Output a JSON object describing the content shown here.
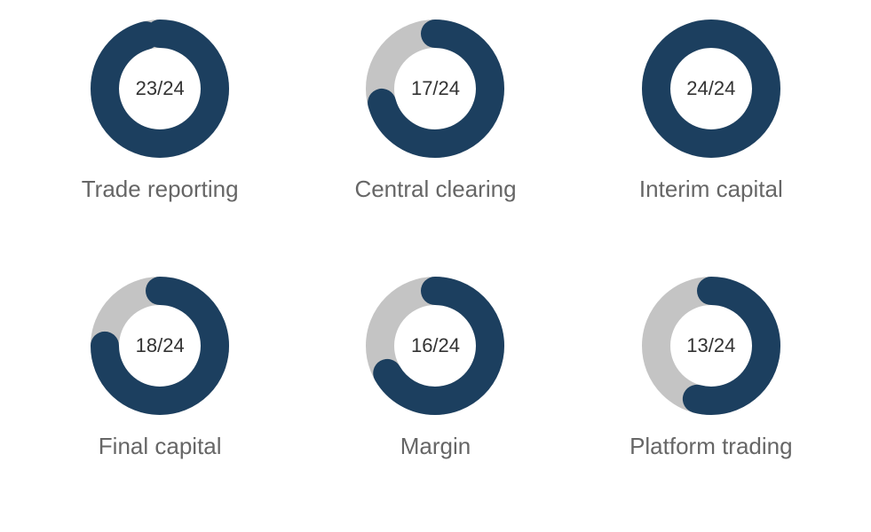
{
  "chart": {
    "type": "donut-multiples",
    "background_color": "#ffffff",
    "ring_thickness": 32,
    "ring_outer_radius": 78,
    "fill_color": "#1c3f5f",
    "track_color": "#c4c4c4",
    "center_text_color": "#333333",
    "center_text_fontsize": 22,
    "label_color": "#666666",
    "label_fontsize": 26,
    "total": 24,
    "items": [
      {
        "label": "Trade reporting",
        "value": 23,
        "center": "23/24"
      },
      {
        "label": "Central clearing",
        "value": 17,
        "center": "17/24"
      },
      {
        "label": "Interim capital",
        "value": 24,
        "center": "24/24"
      },
      {
        "label": "Final capital",
        "value": 18,
        "center": "18/24"
      },
      {
        "label": "Margin",
        "value": 16,
        "center": "16/24"
      },
      {
        "label": "Platform trading",
        "value": 13,
        "center": "13/24"
      }
    ]
  }
}
